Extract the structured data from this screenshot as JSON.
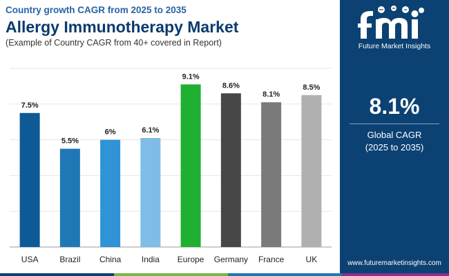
{
  "header": {
    "kicker": "Country growth CAGR from 2025 to 2035",
    "title": "Allergy Immunotherapy Market",
    "subtitle": "(Example of Country CAGR from 40+ covered in Report)"
  },
  "chart_data": {
    "type": "bar",
    "categories": [
      "USA",
      "Brazil",
      "China",
      "India",
      "Europe",
      "Germany",
      "France",
      "UK"
    ],
    "values": [
      7.5,
      5.5,
      6,
      6.1,
      9.1,
      8.6,
      8.1,
      8.5
    ],
    "value_labels": [
      "7.5%",
      "5.5%",
      "6%",
      "6.1%",
      "9.1%",
      "8.6%",
      "8.1%",
      "8.5%"
    ],
    "ylim": [
      0,
      10
    ],
    "grid": true,
    "bar_colors": [
      "#0d5a96",
      "#1f78b6",
      "#2f93d6",
      "#7fbde6",
      "#1fb031",
      "#474747",
      "#7a7a7a",
      "#b0b0b0"
    ]
  },
  "panel": {
    "logo_text": "Future Market Insights",
    "cagr_value": "8.1%",
    "cagr_label_line1": "Global CAGR",
    "cagr_label_line2": "(2025 to 2035)",
    "website": "www.futuremarketinsights.com"
  },
  "colors": {
    "panel_bg": "#0c4173",
    "title": "#0b3a6e",
    "kicker": "#2563a6",
    "footer": [
      "#0c4173",
      "#7ab648",
      "#1f78b6",
      "#8a2f8e"
    ]
  }
}
